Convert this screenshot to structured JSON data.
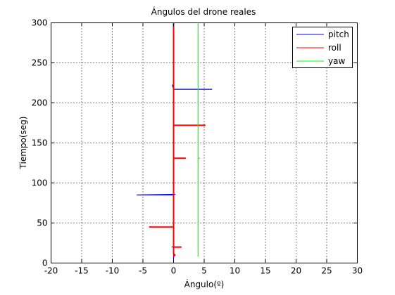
{
  "chart_data": {
    "type": "line",
    "title": "Ángulos del drone reales",
    "xlabel": "Ángulo(º)",
    "ylabel": "Tiempo(seg)",
    "xlim": [
      -20,
      30
    ],
    "ylim": [
      0,
      300
    ],
    "xticks": [
      -20,
      -15,
      -10,
      -5,
      0,
      5,
      10,
      15,
      20,
      25,
      30
    ],
    "yticks": [
      0,
      50,
      100,
      150,
      200,
      250,
      300
    ],
    "xtick_labels": [
      "-20",
      "-15",
      "-10",
      "-5",
      "0",
      "5",
      "10",
      "15",
      "20",
      "25",
      "30"
    ],
    "ytick_labels": [
      "0",
      "50",
      "100",
      "150",
      "200",
      "250",
      "300"
    ],
    "grid": true,
    "legend_position": "top-right",
    "series": [
      {
        "name": "pitch",
        "color": "#0000ff",
        "points": [
          [
            0,
            5
          ],
          [
            0,
            20
          ],
          [
            -0.3,
            20
          ],
          [
            0,
            20
          ],
          [
            0,
            45
          ],
          [
            0,
            85
          ],
          [
            0.3,
            86
          ],
          [
            -6,
            85
          ],
          [
            0,
            85
          ],
          [
            0,
            110
          ],
          [
            0,
            217
          ],
          [
            6.3,
            217
          ],
          [
            0,
            217
          ],
          [
            -0.2,
            222
          ],
          [
            0,
            223
          ],
          [
            0,
            230
          ]
        ]
      },
      {
        "name": "roll",
        "color": "#ff0000",
        "points": [
          [
            0,
            8
          ],
          [
            0.2,
            10
          ],
          [
            0,
            12
          ],
          [
            0,
            20
          ],
          [
            1.3,
            20
          ],
          [
            0,
            20
          ],
          [
            0,
            45
          ],
          [
            -4,
            45
          ],
          [
            0,
            45
          ],
          [
            0,
            131
          ],
          [
            2,
            131
          ],
          [
            0,
            131
          ],
          [
            0,
            172
          ],
          [
            5.2,
            172
          ],
          [
            0,
            172
          ],
          [
            0,
            300
          ]
        ]
      },
      {
        "name": "yaw",
        "color": "#00ff00",
        "points": [
          [
            4,
            8
          ],
          [
            4,
            131
          ],
          [
            4.3,
            131
          ],
          [
            4,
            131
          ],
          [
            4,
            300
          ]
        ]
      }
    ]
  }
}
